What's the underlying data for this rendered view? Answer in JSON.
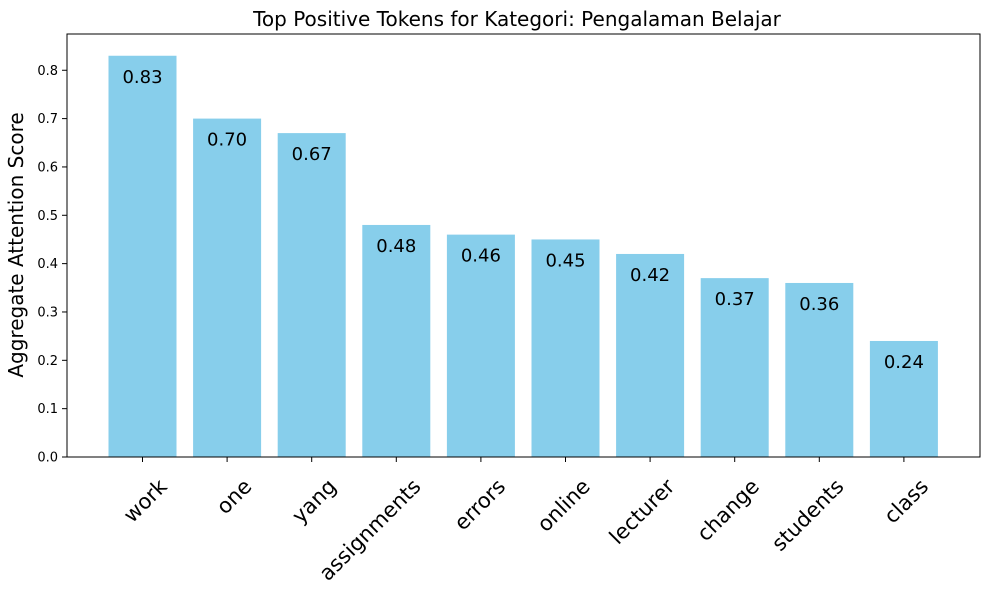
{
  "chart_data": {
    "type": "bar",
    "title": "Top Positive Tokens for Kategori: Pengalaman Belajar",
    "xlabel": "",
    "ylabel": "Aggregate Attention Score",
    "categories": [
      "work",
      "one",
      "yang",
      "assignments",
      "errors",
      "online",
      "lecturer",
      "change",
      "students",
      "class"
    ],
    "values": [
      0.83,
      0.7,
      0.67,
      0.48,
      0.46,
      0.45,
      0.42,
      0.37,
      0.36,
      0.24
    ],
    "value_labels": [
      "0.83",
      "0.70",
      "0.67",
      "0.48",
      "0.46",
      "0.45",
      "0.42",
      "0.37",
      "0.36",
      "0.24"
    ],
    "ylim": [
      0,
      0.875
    ],
    "yticks": [
      0.0,
      0.1,
      0.2,
      0.3,
      0.4,
      0.5,
      0.6,
      0.7,
      0.8
    ],
    "ytick_labels": [
      "0.0",
      "0.1",
      "0.2",
      "0.3",
      "0.4",
      "0.5",
      "0.6",
      "0.7",
      "0.8"
    ],
    "xtick_rotation_deg": 45,
    "bar_color": "#87ceeb",
    "grid": false,
    "legend": "none"
  }
}
